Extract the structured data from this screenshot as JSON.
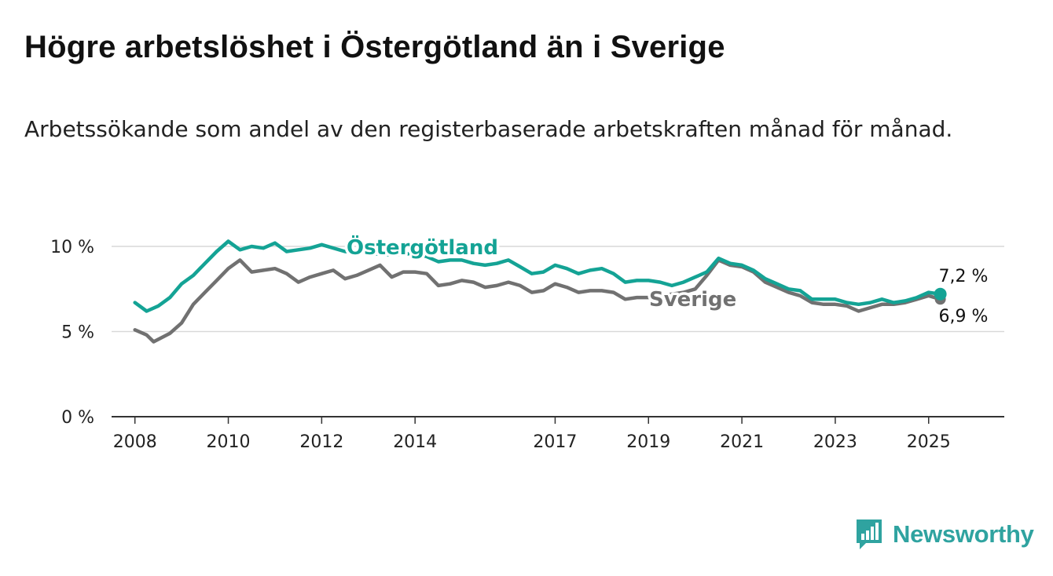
{
  "title": "Högre arbetslöshet i Östergötland än i Sverige",
  "subtitle": "Arbetssökande som andel av den registerbaserade arbetskraften månad för månad.",
  "brand": {
    "name": "Newsworthy",
    "icon": "newsworthy-logo-icon",
    "color": "#2fa3a0"
  },
  "colors": {
    "ostergotland": "#14a395",
    "sverige": "#717171",
    "grid": "#d9d9d9",
    "axis": "#333333"
  },
  "chart_data": {
    "type": "line",
    "x_unit": "year",
    "ylim": [
      0,
      10
    ],
    "y_ticks": [
      0,
      5,
      10
    ],
    "y_tick_labels": [
      "0 %",
      "5 %",
      "10 %"
    ],
    "x_ticks": [
      2008,
      2010,
      2012,
      2014,
      2017,
      2019,
      2021,
      2023,
      2025
    ],
    "x_tick_labels": [
      "2008",
      "2010",
      "2012",
      "2014",
      "2017",
      "2019",
      "2021",
      "2023",
      "2025"
    ],
    "grid": "horizontal",
    "legend": "direct labels on lines",
    "end_labels": {
      "ostergotland": "7,2 %",
      "sverige": "6,9 %"
    },
    "series": [
      {
        "name": "Östergötland",
        "color": "#14a395",
        "points": [
          [
            2008.0,
            6.7
          ],
          [
            2008.25,
            6.2
          ],
          [
            2008.5,
            6.5
          ],
          [
            2008.75,
            7.0
          ],
          [
            2009.0,
            7.8
          ],
          [
            2009.25,
            8.3
          ],
          [
            2009.5,
            9.0
          ],
          [
            2009.75,
            9.7
          ],
          [
            2010.0,
            10.3
          ],
          [
            2010.25,
            9.8
          ],
          [
            2010.5,
            10.0
          ],
          [
            2010.75,
            9.9
          ],
          [
            2011.0,
            10.2
          ],
          [
            2011.25,
            9.7
          ],
          [
            2011.5,
            9.8
          ],
          [
            2011.75,
            9.9
          ],
          [
            2012.0,
            10.1
          ],
          [
            2012.5,
            9.7
          ],
          [
            2013.0,
            9.6
          ],
          [
            2013.5,
            9.5
          ],
          [
            2014.0,
            9.6
          ],
          [
            2014.25,
            9.4
          ],
          [
            2014.5,
            9.1
          ],
          [
            2014.75,
            9.2
          ],
          [
            2015.0,
            9.2
          ],
          [
            2015.25,
            9.0
          ],
          [
            2015.5,
            8.9
          ],
          [
            2015.75,
            9.0
          ],
          [
            2016.0,
            9.2
          ],
          [
            2016.25,
            8.8
          ],
          [
            2016.5,
            8.4
          ],
          [
            2016.75,
            8.5
          ],
          [
            2017.0,
            8.9
          ],
          [
            2017.25,
            8.7
          ],
          [
            2017.5,
            8.4
          ],
          [
            2017.75,
            8.6
          ],
          [
            2018.0,
            8.7
          ],
          [
            2018.25,
            8.4
          ],
          [
            2018.5,
            7.9
          ],
          [
            2018.75,
            8.0
          ],
          [
            2019.0,
            8.0
          ],
          [
            2019.25,
            7.9
          ],
          [
            2019.5,
            7.7
          ],
          [
            2019.75,
            7.9
          ],
          [
            2020.0,
            8.2
          ],
          [
            2020.25,
            8.5
          ],
          [
            2020.5,
            9.3
          ],
          [
            2020.75,
            9.0
          ],
          [
            2021.0,
            8.9
          ],
          [
            2021.25,
            8.6
          ],
          [
            2021.5,
            8.1
          ],
          [
            2021.75,
            7.8
          ],
          [
            2022.0,
            7.5
          ],
          [
            2022.25,
            7.4
          ],
          [
            2022.5,
            6.9
          ],
          [
            2022.75,
            6.9
          ],
          [
            2023.0,
            6.9
          ],
          [
            2023.25,
            6.7
          ],
          [
            2023.5,
            6.6
          ],
          [
            2023.75,
            6.7
          ],
          [
            2024.0,
            6.9
          ],
          [
            2024.25,
            6.7
          ],
          [
            2024.5,
            6.8
          ],
          [
            2024.75,
            7.0
          ],
          [
            2025.0,
            7.3
          ],
          [
            2025.25,
            7.2
          ]
        ]
      },
      {
        "name": "Sverige",
        "color": "#717171",
        "points": [
          [
            2008.0,
            5.1
          ],
          [
            2008.25,
            4.8
          ],
          [
            2008.4,
            4.4
          ],
          [
            2008.75,
            4.9
          ],
          [
            2009.0,
            5.5
          ],
          [
            2009.25,
            6.6
          ],
          [
            2009.5,
            7.3
          ],
          [
            2009.75,
            8.0
          ],
          [
            2010.0,
            8.7
          ],
          [
            2010.25,
            9.2
          ],
          [
            2010.5,
            8.5
          ],
          [
            2010.75,
            8.6
          ],
          [
            2011.0,
            8.7
          ],
          [
            2011.25,
            8.4
          ],
          [
            2011.5,
            7.9
          ],
          [
            2011.75,
            8.2
          ],
          [
            2012.0,
            8.4
          ],
          [
            2012.25,
            8.6
          ],
          [
            2012.5,
            8.1
          ],
          [
            2012.75,
            8.3
          ],
          [
            2013.0,
            8.6
          ],
          [
            2013.25,
            8.9
          ],
          [
            2013.5,
            8.2
          ],
          [
            2013.75,
            8.5
          ],
          [
            2014.0,
            8.5
          ],
          [
            2014.25,
            8.4
          ],
          [
            2014.5,
            7.7
          ],
          [
            2014.75,
            7.8
          ],
          [
            2015.0,
            8.0
          ],
          [
            2015.25,
            7.9
          ],
          [
            2015.5,
            7.6
          ],
          [
            2015.75,
            7.7
          ],
          [
            2016.0,
            7.9
          ],
          [
            2016.25,
            7.7
          ],
          [
            2016.5,
            7.3
          ],
          [
            2016.75,
            7.4
          ],
          [
            2017.0,
            7.8
          ],
          [
            2017.25,
            7.6
          ],
          [
            2017.5,
            7.3
          ],
          [
            2017.75,
            7.4
          ],
          [
            2018.0,
            7.4
          ],
          [
            2018.25,
            7.3
          ],
          [
            2018.5,
            6.9
          ],
          [
            2018.75,
            7.0
          ],
          [
            2019.0,
            7.0
          ],
          [
            2019.25,
            7.1
          ],
          [
            2019.5,
            7.2
          ],
          [
            2019.75,
            7.3
          ],
          [
            2020.0,
            7.5
          ],
          [
            2020.25,
            8.3
          ],
          [
            2020.5,
            9.2
          ],
          [
            2020.75,
            8.9
          ],
          [
            2021.0,
            8.8
          ],
          [
            2021.25,
            8.5
          ],
          [
            2021.5,
            7.9
          ],
          [
            2021.75,
            7.6
          ],
          [
            2022.0,
            7.3
          ],
          [
            2022.25,
            7.1
          ],
          [
            2022.5,
            6.7
          ],
          [
            2022.75,
            6.6
          ],
          [
            2023.0,
            6.6
          ],
          [
            2023.25,
            6.5
          ],
          [
            2023.5,
            6.2
          ],
          [
            2023.75,
            6.4
          ],
          [
            2024.0,
            6.6
          ],
          [
            2024.25,
            6.6
          ],
          [
            2024.5,
            6.7
          ],
          [
            2024.75,
            6.9
          ],
          [
            2025.0,
            7.1
          ],
          [
            2025.25,
            6.9
          ]
        ]
      }
    ]
  }
}
